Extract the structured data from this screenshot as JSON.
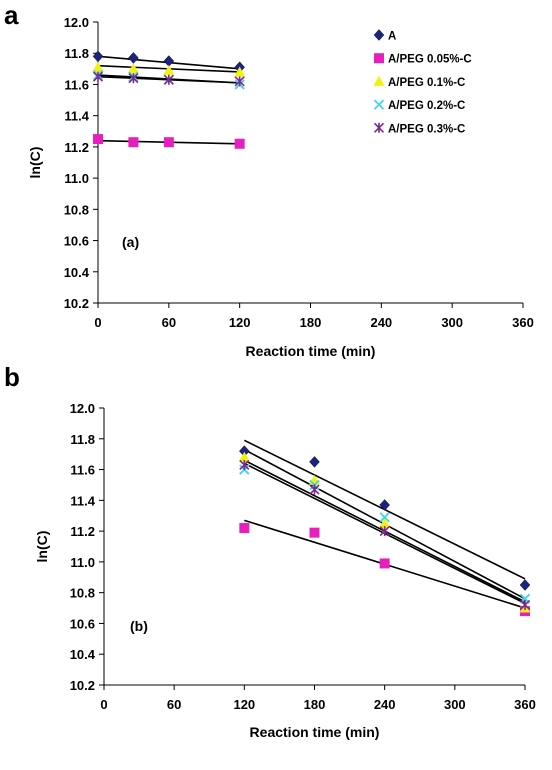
{
  "figure": {
    "panel_a_letter": "a",
    "panel_b_letter": "b"
  },
  "chart_data": [
    {
      "type": "scatter",
      "panel_label": "(a)",
      "xlabel": "Reaction time (min)",
      "ylabel": "ln(C)",
      "xlim": [
        0,
        360
      ],
      "ylim": [
        10.2,
        12.0
      ],
      "xticks": [
        "0",
        "60",
        "120",
        "180",
        "240",
        "300",
        "360"
      ],
      "yticks": [
        "10.2",
        "10.4",
        "10.6",
        "10.8",
        "11.0",
        "11.2",
        "11.4",
        "11.6",
        "11.8",
        "12.0"
      ],
      "grid": false,
      "legend_position": "top-right",
      "series": [
        {
          "name": "A",
          "color": "#1a237e",
          "marker": "diamond",
          "x": [
            0,
            30,
            60,
            120
          ],
          "y": [
            11.78,
            11.77,
            11.75,
            11.71
          ],
          "fit": {
            "x": [
              0,
              120
            ],
            "y": [
              11.78,
              11.7
            ]
          }
        },
        {
          "name": "A/PEG 0.05%-C",
          "color": "#e81ebf",
          "marker": "square",
          "x": [
            0,
            30,
            60,
            120
          ],
          "y": [
            11.25,
            11.23,
            11.23,
            11.22
          ],
          "fit": {
            "x": [
              0,
              120
            ],
            "y": [
              11.24,
              11.22
            ]
          }
        },
        {
          "name": "A/PEG 0.1%-C",
          "color": "#f2f20a",
          "marker": "triangle",
          "x": [
            0,
            30,
            60,
            120
          ],
          "y": [
            11.71,
            11.7,
            11.69,
            11.68
          ],
          "fit": {
            "x": [
              0,
              120
            ],
            "y": [
              11.72,
              11.68
            ]
          }
        },
        {
          "name": "A/PEG 0.2%-C",
          "color": "#41d4e8",
          "marker": "x",
          "x": [
            0,
            30,
            60,
            120
          ],
          "y": [
            11.66,
            11.65,
            11.63,
            11.6
          ],
          "fit": {
            "x": [
              0,
              120
            ],
            "y": [
              11.66,
              11.61
            ]
          }
        },
        {
          "name": "A/PEG 0.3%-C",
          "color": "#7b2a8c",
          "marker": "star",
          "x": [
            0,
            30,
            60,
            120
          ],
          "y": [
            11.65,
            11.64,
            11.63,
            11.62
          ],
          "fit": {
            "x": [
              0,
              120
            ],
            "y": [
              11.65,
              11.61
            ]
          }
        }
      ]
    },
    {
      "type": "scatter",
      "panel_label": "(b)",
      "xlabel": "Reaction time (min)",
      "ylabel": "ln(C)",
      "xlim": [
        0,
        360
      ],
      "ylim": [
        10.2,
        12.0
      ],
      "xticks": [
        "0",
        "60",
        "120",
        "180",
        "240",
        "300",
        "360"
      ],
      "yticks": [
        "10.2",
        "10.4",
        "10.6",
        "10.8",
        "11.0",
        "11.2",
        "11.4",
        "11.6",
        "11.8",
        "12.0"
      ],
      "grid": false,
      "series": [
        {
          "name": "A",
          "color": "#1a237e",
          "marker": "diamond",
          "x": [
            120,
            180,
            240,
            360
          ],
          "y": [
            11.72,
            11.65,
            11.37,
            10.85
          ],
          "fit": {
            "x": [
              120,
              360
            ],
            "y": [
              11.79,
              10.89
            ]
          }
        },
        {
          "name": "A/PEG 0.05%-C",
          "color": "#e81ebf",
          "marker": "square",
          "x": [
            120,
            180,
            240,
            360
          ],
          "y": [
            11.22,
            11.19,
            10.99,
            10.68
          ],
          "fit": {
            "x": [
              120,
              360
            ],
            "y": [
              11.27,
              10.7
            ]
          }
        },
        {
          "name": "A/PEG 0.1%-C",
          "color": "#f2f20a",
          "marker": "triangle",
          "x": [
            120,
            180,
            240,
            360
          ],
          "y": [
            11.68,
            11.53,
            11.25,
            10.7
          ],
          "fit": {
            "x": [
              120,
              360
            ],
            "y": [
              11.73,
              10.76
            ]
          }
        },
        {
          "name": "A/PEG 0.2%-C",
          "color": "#41d4e8",
          "marker": "x",
          "x": [
            120,
            180,
            240,
            360
          ],
          "y": [
            11.6,
            11.5,
            11.29,
            10.76
          ],
          "fit": {
            "x": [
              120,
              360
            ],
            "y": [
              11.66,
              10.74
            ]
          }
        },
        {
          "name": "A/PEG 0.3%-C",
          "color": "#7b2a8c",
          "marker": "star",
          "x": [
            120,
            180,
            240,
            360
          ],
          "y": [
            11.63,
            11.47,
            11.2,
            10.72
          ],
          "fit": {
            "x": [
              120,
              360
            ],
            "y": [
              11.64,
              10.73
            ]
          }
        }
      ]
    }
  ]
}
